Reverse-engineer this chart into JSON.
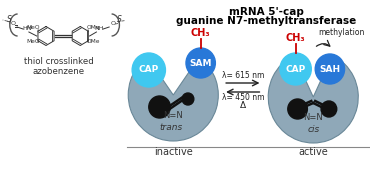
{
  "title_line1": "mRNA 5'-cap",
  "title_line2": "guanine N7-methyltransferase",
  "subtitle_left": "thiol crosslinked\nazobenzene",
  "label_inactive": "inactive",
  "label_active": "active",
  "label_trans": "trans",
  "label_cis": "cis",
  "label_cap": "CAP",
  "label_sam": "SAM",
  "label_sah": "SAH",
  "label_ch3": "CH₃",
  "label_methylation": "methylation",
  "arrow_top": "λ= 615 nm",
  "arrow_bottom": "λ= 450 nm",
  "arrow_delta": "Δ",
  "color_protein": "#8fa8b8",
  "color_protein_edge": "#6a8898",
  "color_cap": "#40c8f0",
  "color_sam": "#2878d8",
  "color_sah": "#2878d8",
  "color_black_ball": "#111111",
  "color_red": "#cc0000",
  "color_background": "#ffffff",
  "color_title": "#000000",
  "color_dark": "#222222",
  "figw": 3.78,
  "figh": 1.75,
  "dpi": 100
}
